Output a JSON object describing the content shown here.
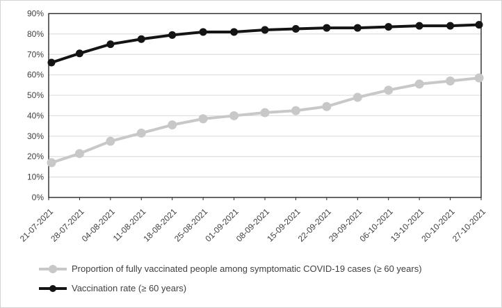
{
  "figure": {
    "background": "#ffffff",
    "border_color": "#d3d3d3"
  },
  "chart_data": {
    "type": "line",
    "title": "",
    "xlabel": "",
    "ylabel": "",
    "categories": [
      "21-07-2021",
      "28-07-2021",
      "04-08-2021",
      "11-08-2021",
      "18-08-2021",
      "25-08-2021",
      "01-09-2021",
      "08-09-2021",
      "15-09-2021",
      "22-09-2021",
      "29-09-2021",
      "06-10-2021",
      "13-10-2021",
      "20-10-2021",
      "27-10-2021"
    ],
    "series": [
      {
        "name": "Proportion of fully vaccinated people among symptomatic COVID-19 cases (≥ 60 years)",
        "color": "#c8c8c8",
        "line_width": 4,
        "marker_radius": 6.5,
        "values": [
          17,
          21.5,
          27.5,
          31.5,
          35.5,
          38.5,
          40,
          41.5,
          42.5,
          44.5,
          49,
          52.5,
          55.5,
          57,
          58.5
        ]
      },
      {
        "name": "Vaccination rate (≥ 60 years)",
        "color": "#141414",
        "line_width": 4,
        "marker_radius": 5.5,
        "values": [
          66,
          70.5,
          75,
          77.5,
          79.5,
          81,
          81,
          82,
          82.5,
          83,
          83,
          83.5,
          84,
          84,
          84.5
        ]
      }
    ],
    "ylim": [
      0,
      90
    ],
    "ytick_step": 10,
    "ytick_labels": [
      "0%",
      "10%",
      "20%",
      "30%",
      "40%",
      "50%",
      "60%",
      "70%",
      "80%",
      "90%"
    ],
    "grid": true,
    "legend_position": "bottom-left",
    "colors": {
      "grid": "#dedede",
      "axis": "#262626",
      "text": "#404040"
    }
  }
}
